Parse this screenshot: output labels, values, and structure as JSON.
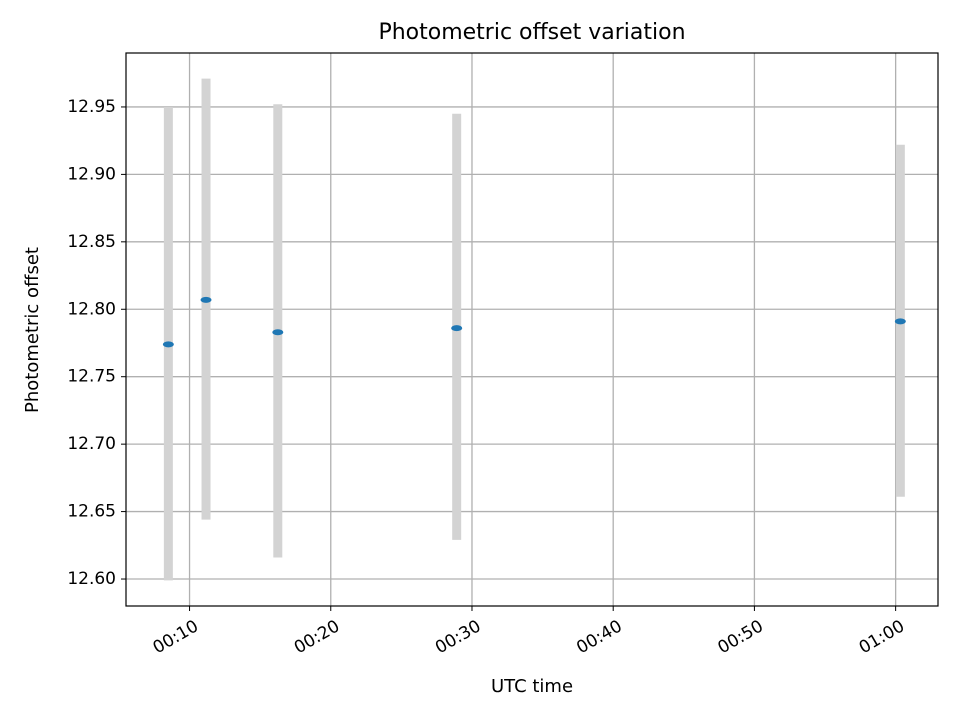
{
  "chart_data": {
    "type": "scatter",
    "title": "Photometric offset variation",
    "xlabel": "UTC time",
    "ylabel": "Photometric offset",
    "x_tick_labels": [
      "00:10",
      "00:20",
      "00:30",
      "00:40",
      "00:50",
      "01:00"
    ],
    "y_tick_labels": [
      "12.60",
      "12.65",
      "12.70",
      "12.75",
      "12.80",
      "12.85",
      "12.90",
      "12.95"
    ],
    "x_ticks": [
      "00:10",
      "00:20",
      "00:30",
      "00:40",
      "00:50",
      "01:00"
    ],
    "y_ticks": [
      12.6,
      12.65,
      12.7,
      12.75,
      12.8,
      12.85,
      12.9,
      12.95
    ],
    "xlim": [
      "00:05:30",
      "01:03:00"
    ],
    "ylim": [
      12.58,
      12.99
    ],
    "grid": true,
    "series": [
      {
        "points": [
          {
            "x": "00:08:30",
            "y": 12.774,
            "err_low": 12.599,
            "err_high": 12.95
          },
          {
            "x": "00:11:10",
            "y": 12.807,
            "err_low": 12.644,
            "err_high": 12.971
          },
          {
            "x": "00:16:15",
            "y": 12.783,
            "err_low": 12.616,
            "err_high": 12.952
          },
          {
            "x": "00:28:55",
            "y": 12.786,
            "err_low": 12.629,
            "err_high": 12.945
          },
          {
            "x": "01:00:20",
            "y": 12.791,
            "err_low": 12.661,
            "err_high": 12.922
          }
        ]
      }
    ],
    "colors": {
      "point": "#1f77b4",
      "errorbar": "#d3d3d3",
      "grid": "#b0b0b0"
    }
  }
}
